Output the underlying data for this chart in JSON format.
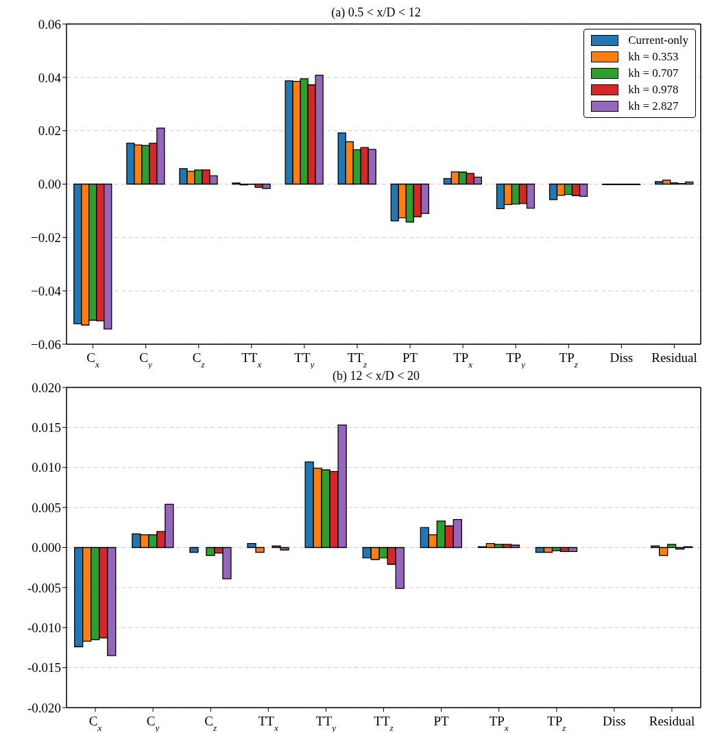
{
  "chart_data": [
    {
      "type": "bar",
      "title": "(a) 0.5 < x/D < 12",
      "categories": [
        "C$_{x}$",
        "C$_{y}$",
        "C$_{z}$",
        "TT$_{x}$",
        "TT$_{y}$",
        "TT$_{z}$",
        "PT",
        "TP$_{x}$",
        "TP$_{y}$",
        "TP$_{z}$",
        "Diss",
        "Residual"
      ],
      "series": [
        {
          "name": "Current-only",
          "color": "#1f77b4",
          "values": [
            -0.0523,
            0.0153,
            0.0058,
            0.0004,
            0.0387,
            0.0192,
            -0.0138,
            0.0021,
            -0.0092,
            -0.0058,
            -0.0002,
            0.0009
          ]
        },
        {
          "name": "kh = 0.353",
          "color": "#ff7f0e",
          "values": [
            -0.0528,
            0.0147,
            0.0048,
            -0.0003,
            0.0385,
            0.0159,
            -0.0126,
            0.0046,
            -0.0077,
            -0.0042,
            -0.0002,
            0.0015
          ]
        },
        {
          "name": "kh = 0.707",
          "color": "#2ca02c",
          "values": [
            -0.051,
            0.0145,
            0.0053,
            -0.0001,
            0.0395,
            0.0129,
            -0.0142,
            0.0045,
            -0.0075,
            -0.0039,
            -0.0002,
            0.0005
          ]
        },
        {
          "name": "kh = 0.978",
          "color": "#d62728",
          "values": [
            -0.0512,
            0.0153,
            0.0053,
            -0.0012,
            0.0372,
            0.0137,
            -0.0122,
            0.004,
            -0.0073,
            -0.0043,
            -0.0002,
            0.0002
          ]
        },
        {
          "name": "kh = 2.827",
          "color": "#9467bd",
          "values": [
            -0.0543,
            0.021,
            0.0031,
            -0.0016,
            0.0408,
            0.013,
            -0.011,
            0.0026,
            -0.009,
            -0.0046,
            -0.0002,
            0.0008
          ]
        }
      ],
      "ylim": [
        -0.06,
        0.06
      ],
      "yticks": [
        {
          "value": -0.06,
          "label": "−0.06"
        },
        {
          "value": -0.04,
          "label": "−0.04"
        },
        {
          "value": -0.02,
          "label": "−0.02"
        },
        {
          "value": 0,
          "label": "0.00"
        },
        {
          "value": 0.02,
          "label": "0.02"
        },
        {
          "value": 0.04,
          "label": "0.04"
        },
        {
          "value": 0.06,
          "label": "0.06"
        }
      ],
      "grid": "y",
      "legend": "top right"
    },
    {
      "type": "bar",
      "title": "(b) 12 < x/D < 20",
      "categories": [
        "C$_{x}$",
        "C$_{y}$",
        "C$_{z}$",
        "TT$_{x}$",
        "TT$_{y}$",
        "TT$_{z}$",
        "PT",
        "TP$_{x}$",
        "TP$_{z}$",
        "Diss",
        "Residual"
      ],
      "series": [
        {
          "color": "#1f77b4",
          "values": [
            -0.0124,
            0.0017,
            -0.0006,
            0.0005,
            0.0107,
            -0.0013,
            0.0025,
            0.0001,
            -0.0006,
            0,
            0.0002
          ]
        },
        {
          "color": "#ff7f0e",
          "values": [
            -0.0117,
            0.0016,
            0,
            -0.0006,
            0.0099,
            -0.0015,
            0.0016,
            0.0005,
            -0.0006,
            0,
            -0.001
          ]
        },
        {
          "color": "#2ca02c",
          "values": [
            -0.0115,
            0.0016,
            -0.001,
            0,
            0.0097,
            -0.0013,
            0.0033,
            0.0004,
            -0.0004,
            0,
            0.0004
          ]
        },
        {
          "color": "#d62728",
          "values": [
            -0.0113,
            0.002,
            -0.0007,
            0.0002,
            0.0095,
            -0.0021,
            0.0027,
            0.0004,
            -0.0005,
            0,
            -0.0002
          ]
        },
        {
          "color": "#9467bd",
          "values": [
            -0.0135,
            0.0054,
            -0.0039,
            -0.0003,
            0.0153,
            -0.0051,
            0.0035,
            0.0003,
            -0.0005,
            0,
            0.0001
          ]
        }
      ],
      "ylim": [
        -0.02,
        0.02
      ],
      "yticks": [
        {
          "value": -0.02,
          "label": "-0.020"
        },
        {
          "value": -0.015,
          "label": "-0.015"
        },
        {
          "value": -0.01,
          "label": "-0.010"
        },
        {
          "value": -0.005,
          "label": "-0.005"
        },
        {
          "value": 0,
          "label": "0.000"
        },
        {
          "value": 0.005,
          "label": "0.005"
        },
        {
          "value": 0.01,
          "label": "0.010"
        },
        {
          "value": 0.015,
          "label": "0.015"
        },
        {
          "value": 0.02,
          "label": "0.020"
        }
      ],
      "grid": "y"
    }
  ]
}
